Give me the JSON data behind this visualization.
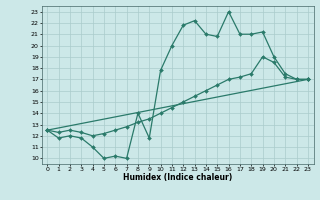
{
  "xlabel": "Humidex (Indice chaleur)",
  "xlim": [
    -0.5,
    23.5
  ],
  "ylim": [
    9.5,
    23.5
  ],
  "yticks": [
    10,
    11,
    12,
    13,
    14,
    15,
    16,
    17,
    18,
    19,
    20,
    21,
    22,
    23
  ],
  "xticks": [
    0,
    1,
    2,
    3,
    4,
    5,
    6,
    7,
    8,
    9,
    10,
    11,
    12,
    13,
    14,
    15,
    16,
    17,
    18,
    19,
    20,
    21,
    22,
    23
  ],
  "line_color": "#2a7a6a",
  "bg_color": "#cce8e8",
  "grid_color": "#aacccc",
  "series1_x": [
    0,
    1,
    2,
    3,
    4,
    5,
    6,
    7,
    8,
    9,
    10,
    11,
    12,
    13,
    14,
    15,
    16,
    17,
    18,
    19,
    20,
    21,
    22,
    23
  ],
  "series1_y": [
    12.5,
    11.8,
    12.0,
    11.8,
    11.0,
    10.0,
    10.2,
    10.0,
    14.0,
    11.8,
    17.8,
    20.0,
    21.8,
    22.2,
    21.0,
    20.8,
    23.0,
    21.0,
    21.0,
    21.2,
    19.0,
    17.5,
    17.0,
    17.0
  ],
  "series2_x": [
    0,
    1,
    2,
    3,
    4,
    5,
    6,
    7,
    8,
    9,
    10,
    11,
    12,
    13,
    14,
    15,
    16,
    17,
    18,
    19,
    20,
    21,
    22,
    23
  ],
  "series2_y": [
    12.5,
    12.3,
    12.5,
    12.3,
    12.0,
    12.2,
    12.5,
    12.8,
    13.2,
    13.5,
    14.0,
    14.5,
    15.0,
    15.5,
    16.0,
    16.5,
    17.0,
    17.2,
    17.5,
    19.0,
    18.5,
    17.2,
    17.0,
    17.0
  ],
  "series3_x": [
    0,
    23
  ],
  "series3_y": [
    12.5,
    17.0
  ]
}
